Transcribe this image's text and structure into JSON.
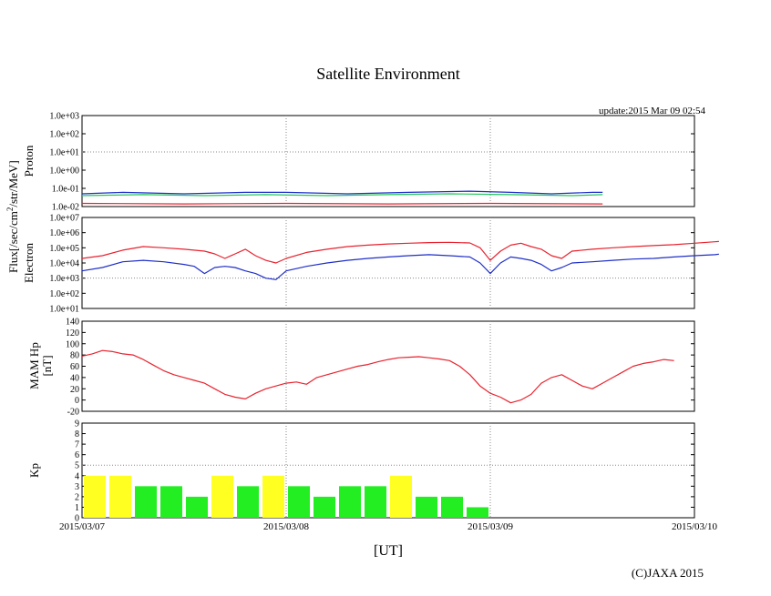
{
  "title": "Satellite Environment",
  "update_text": "update:2015 Mar 09 02:54",
  "copyright": "(C)JAXA 2015",
  "xlabel": "[UT]",
  "flux_label_main": "Flux[/sec/cm",
  "flux_label_sup": "2",
  "flux_label_tail": "/str/MeV]",
  "colors": {
    "red": "#e8232f",
    "blue": "#1f2fc8",
    "green": "#22c85a",
    "yellow": "#ffff22",
    "kp_green": "#22ee22",
    "grid": "#888888"
  },
  "chart_data": [
    {
      "type": "line",
      "name": "proton",
      "ylabel": "Proton",
      "yscale": "log",
      "ylim": [
        0.01,
        1000
      ],
      "yticks": [
        "1.0e-02",
        "1.0e-01",
        "1.0e+00",
        "1.0e+01",
        "1.0e+02",
        "1.0e+03"
      ],
      "xlim_days": [
        0,
        3
      ],
      "series": [
        {
          "name": "proton-blue",
          "color": "blue",
          "points": [
            [
              0.0,
              0.05
            ],
            [
              0.2,
              0.06
            ],
            [
              0.5,
              0.05
            ],
            [
              0.8,
              0.06
            ],
            [
              1.0,
              0.06
            ],
            [
              1.3,
              0.05
            ],
            [
              1.6,
              0.06
            ],
            [
              1.9,
              0.07
            ],
            [
              2.1,
              0.06
            ],
            [
              2.3,
              0.05
            ],
            [
              2.5,
              0.06
            ],
            [
              2.55,
              0.06
            ]
          ]
        },
        {
          "name": "proton-green",
          "color": "green",
          "points": [
            [
              0.0,
              0.04
            ],
            [
              0.3,
              0.045
            ],
            [
              0.6,
              0.04
            ],
            [
              0.9,
              0.045
            ],
            [
              1.2,
              0.04
            ],
            [
              1.5,
              0.045
            ],
            [
              1.8,
              0.05
            ],
            [
              2.1,
              0.045
            ],
            [
              2.4,
              0.04
            ],
            [
              2.55,
              0.045
            ]
          ]
        },
        {
          "name": "proton-red",
          "color": "red",
          "points": [
            [
              0.0,
              0.015
            ],
            [
              0.5,
              0.014
            ],
            [
              1.0,
              0.015
            ],
            [
              1.5,
              0.014
            ],
            [
              2.0,
              0.015
            ],
            [
              2.55,
              0.014
            ]
          ]
        }
      ]
    },
    {
      "type": "line",
      "name": "electron",
      "ylabel": "Electron",
      "yscale": "log",
      "ylim": [
        10,
        10000000
      ],
      "yticks": [
        "1.0e+01",
        "1.0e+02",
        "1.0e+03",
        "1.0e+04",
        "1.0e+05",
        "1.0e+06",
        "1.0e+07"
      ],
      "xlim_days": [
        0,
        3
      ],
      "series": [
        {
          "name": "electron-red",
          "color": "red",
          "points": [
            [
              0.0,
              20000
            ],
            [
              0.1,
              30000
            ],
            [
              0.2,
              70000
            ],
            [
              0.3,
              120000
            ],
            [
              0.4,
              100000
            ],
            [
              0.5,
              80000
            ],
            [
              0.6,
              60000
            ],
            [
              0.65,
              40000
            ],
            [
              0.7,
              20000
            ],
            [
              0.75,
              40000
            ],
            [
              0.8,
              80000
            ],
            [
              0.85,
              30000
            ],
            [
              0.9,
              15000
            ],
            [
              0.95,
              10000
            ],
            [
              1.0,
              20000
            ],
            [
              1.1,
              50000
            ],
            [
              1.2,
              80000
            ],
            [
              1.3,
              120000
            ],
            [
              1.4,
              150000
            ],
            [
              1.5,
              180000
            ],
            [
              1.6,
              200000
            ],
            [
              1.7,
              220000
            ],
            [
              1.8,
              230000
            ],
            [
              1.9,
              210000
            ],
            [
              1.95,
              100000
            ],
            [
              2.0,
              15000
            ],
            [
              2.05,
              60000
            ],
            [
              2.1,
              150000
            ],
            [
              2.15,
              200000
            ],
            [
              2.2,
              120000
            ],
            [
              2.25,
              80000
            ],
            [
              2.3,
              30000
            ],
            [
              2.35,
              20000
            ],
            [
              2.4,
              60000
            ],
            [
              2.5,
              80000
            ],
            [
              2.6,
              100000
            ],
            [
              2.7,
              120000
            ],
            [
              2.8,
              140000
            ],
            [
              2.9,
              160000
            ],
            [
              3.0,
              200000
            ],
            [
              3.1,
              250000
            ],
            [
              3.12,
              260000
            ]
          ]
        },
        {
          "name": "electron-blue",
          "color": "blue",
          "points": [
            [
              0.0,
              3000
            ],
            [
              0.1,
              5000
            ],
            [
              0.2,
              12000
            ],
            [
              0.3,
              15000
            ],
            [
              0.4,
              12000
            ],
            [
              0.5,
              8000
            ],
            [
              0.55,
              6000
            ],
            [
              0.6,
              2000
            ],
            [
              0.65,
              5000
            ],
            [
              0.7,
              6000
            ],
            [
              0.75,
              5000
            ],
            [
              0.8,
              3000
            ],
            [
              0.85,
              2000
            ],
            [
              0.9,
              1000
            ],
            [
              0.95,
              800
            ],
            [
              1.0,
              3000
            ],
            [
              1.1,
              6000
            ],
            [
              1.2,
              10000
            ],
            [
              1.3,
              15000
            ],
            [
              1.4,
              20000
            ],
            [
              1.5,
              25000
            ],
            [
              1.6,
              30000
            ],
            [
              1.7,
              35000
            ],
            [
              1.8,
              30000
            ],
            [
              1.9,
              25000
            ],
            [
              1.95,
              10000
            ],
            [
              2.0,
              2000
            ],
            [
              2.05,
              10000
            ],
            [
              2.1,
              25000
            ],
            [
              2.15,
              20000
            ],
            [
              2.2,
              15000
            ],
            [
              2.25,
              8000
            ],
            [
              2.3,
              3000
            ],
            [
              2.35,
              5000
            ],
            [
              2.4,
              10000
            ],
            [
              2.5,
              12000
            ],
            [
              2.6,
              15000
            ],
            [
              2.7,
              18000
            ],
            [
              2.8,
              20000
            ],
            [
              2.9,
              25000
            ],
            [
              3.0,
              30000
            ],
            [
              3.1,
              35000
            ],
            [
              3.12,
              38000
            ]
          ]
        }
      ]
    },
    {
      "type": "line",
      "name": "mam-hp",
      "ylabel": "MAM Hp",
      "ylabel2": "[nT]",
      "yscale": "linear",
      "ylim": [
        -20,
        140
      ],
      "yticks": [
        "-20",
        "0",
        "20",
        "40",
        "60",
        "80",
        "100",
        "120",
        "140"
      ],
      "xlim_days": [
        0,
        3
      ],
      "series": [
        {
          "name": "hp-red",
          "color": "red",
          "points": [
            [
              0.0,
              78
            ],
            [
              0.05,
              82
            ],
            [
              0.1,
              88
            ],
            [
              0.15,
              86
            ],
            [
              0.2,
              82
            ],
            [
              0.25,
              80
            ],
            [
              0.3,
              72
            ],
            [
              0.35,
              62
            ],
            [
              0.4,
              52
            ],
            [
              0.45,
              45
            ],
            [
              0.5,
              40
            ],
            [
              0.55,
              35
            ],
            [
              0.6,
              30
            ],
            [
              0.65,
              20
            ],
            [
              0.7,
              10
            ],
            [
              0.75,
              5
            ],
            [
              0.8,
              2
            ],
            [
              0.85,
              12
            ],
            [
              0.9,
              20
            ],
            [
              0.95,
              25
            ],
            [
              1.0,
              30
            ],
            [
              1.05,
              32
            ],
            [
              1.1,
              28
            ],
            [
              1.15,
              40
            ],
            [
              1.2,
              45
            ],
            [
              1.25,
              50
            ],
            [
              1.3,
              55
            ],
            [
              1.35,
              60
            ],
            [
              1.4,
              63
            ],
            [
              1.45,
              68
            ],
            [
              1.5,
              72
            ],
            [
              1.55,
              75
            ],
            [
              1.6,
              76
            ],
            [
              1.65,
              77
            ],
            [
              1.7,
              75
            ],
            [
              1.75,
              73
            ],
            [
              1.8,
              70
            ],
            [
              1.85,
              60
            ],
            [
              1.9,
              45
            ],
            [
              1.95,
              25
            ],
            [
              2.0,
              12
            ],
            [
              2.05,
              5
            ],
            [
              2.1,
              -5
            ],
            [
              2.15,
              0
            ],
            [
              2.2,
              10
            ],
            [
              2.25,
              30
            ],
            [
              2.3,
              40
            ],
            [
              2.35,
              45
            ],
            [
              2.4,
              35
            ],
            [
              2.45,
              25
            ],
            [
              2.5,
              20
            ],
            [
              2.55,
              30
            ],
            [
              2.6,
              40
            ],
            [
              2.65,
              50
            ],
            [
              2.7,
              60
            ],
            [
              2.75,
              65
            ],
            [
              2.8,
              68
            ],
            [
              2.85,
              72
            ],
            [
              2.9,
              70
            ]
          ]
        }
      ]
    },
    {
      "type": "bar",
      "name": "kp",
      "ylabel": "Kp",
      "ylim": [
        0,
        9
      ],
      "yticks": [
        "0",
        "1",
        "2",
        "3",
        "4",
        "5",
        "6",
        "7",
        "8",
        "9"
      ],
      "xlim_days": [
        0,
        3
      ],
      "bar_width_days": 0.125,
      "bars": [
        {
          "start_day": 0.0,
          "value": 4,
          "color": "yellow"
        },
        {
          "start_day": 0.125,
          "value": 4,
          "color": "yellow"
        },
        {
          "start_day": 0.25,
          "value": 3,
          "color": "kp_green"
        },
        {
          "start_day": 0.375,
          "value": 3,
          "color": "kp_green"
        },
        {
          "start_day": 0.5,
          "value": 2,
          "color": "kp_green"
        },
        {
          "start_day": 0.625,
          "value": 4,
          "color": "yellow"
        },
        {
          "start_day": 0.75,
          "value": 3,
          "color": "kp_green"
        },
        {
          "start_day": 0.875,
          "value": 4,
          "color": "yellow"
        },
        {
          "start_day": 1.0,
          "value": 3,
          "color": "kp_green"
        },
        {
          "start_day": 1.125,
          "value": 2,
          "color": "kp_green"
        },
        {
          "start_day": 1.25,
          "value": 3,
          "color": "kp_green"
        },
        {
          "start_day": 1.375,
          "value": 3,
          "color": "kp_green"
        },
        {
          "start_day": 1.5,
          "value": 4,
          "color": "yellow"
        },
        {
          "start_day": 1.625,
          "value": 2,
          "color": "kp_green"
        },
        {
          "start_day": 1.75,
          "value": 2,
          "color": "kp_green"
        },
        {
          "start_day": 1.875,
          "value": 1,
          "color": "kp_green"
        }
      ],
      "xticks": [
        "2015/03/07",
        "2015/03/08",
        "2015/03/09",
        "2015/03/10"
      ]
    }
  ]
}
